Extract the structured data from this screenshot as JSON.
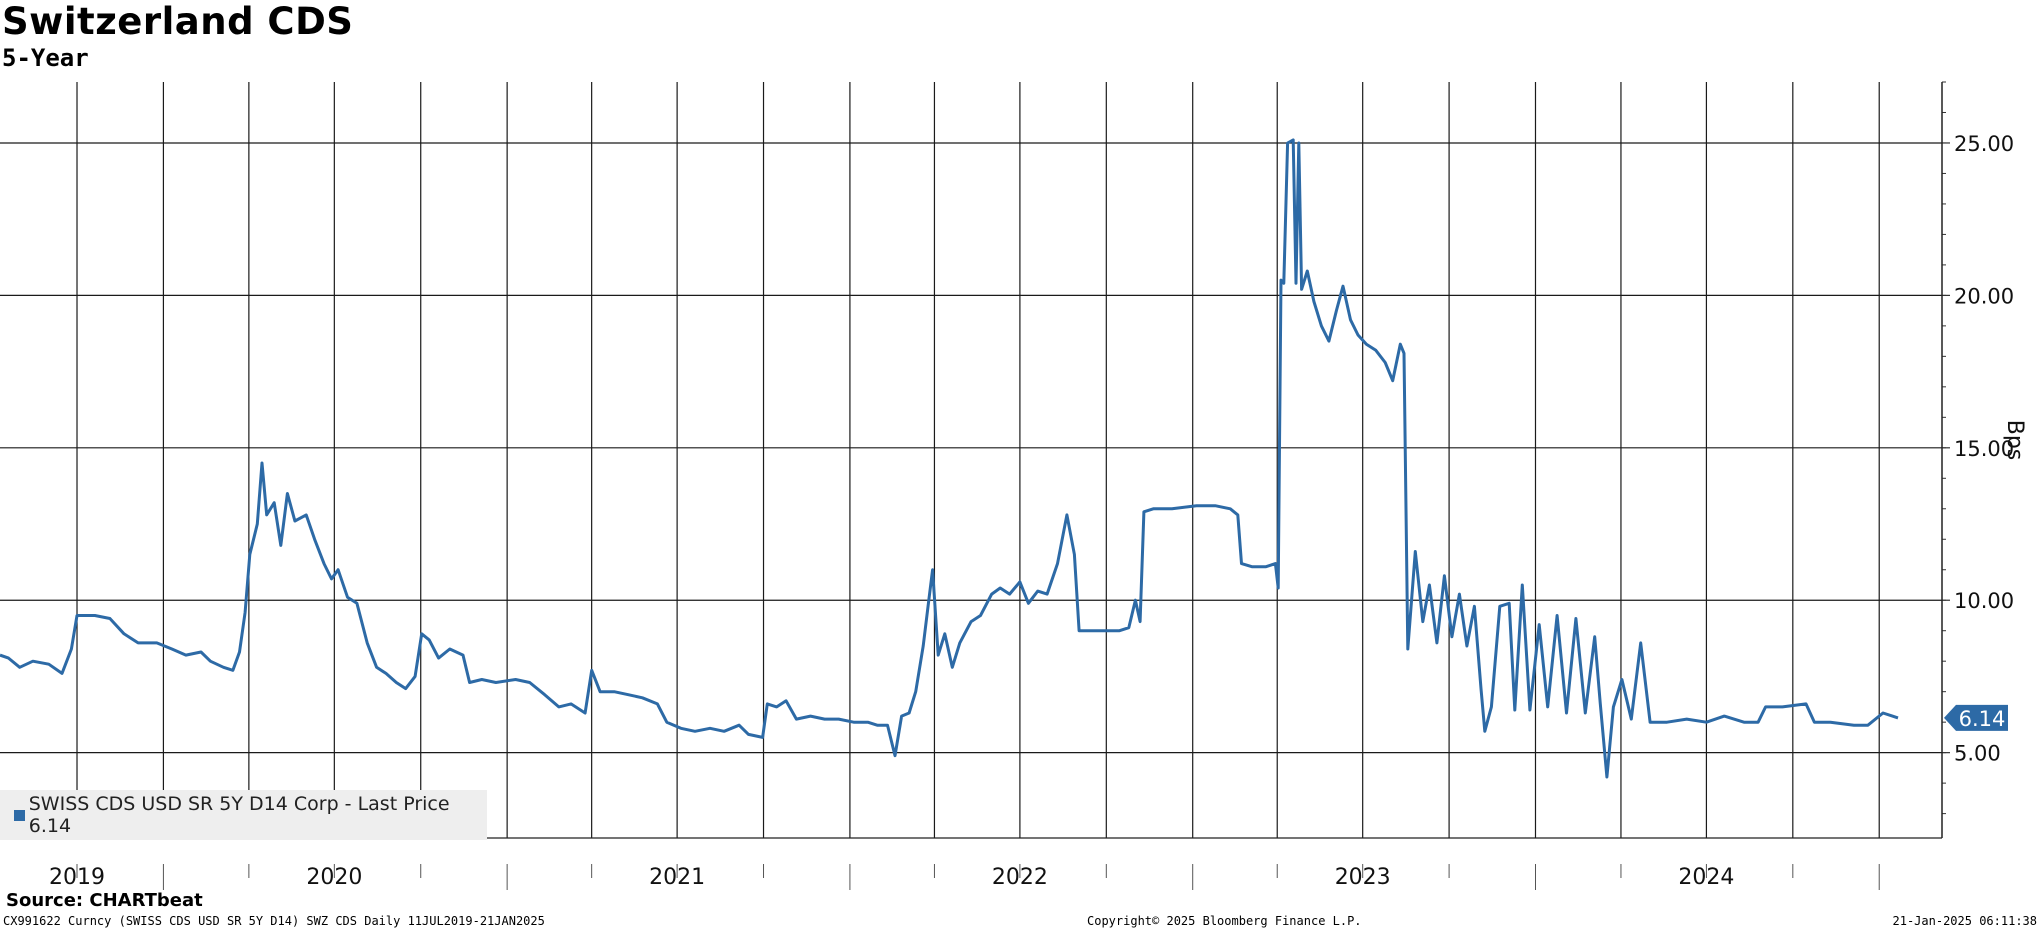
{
  "chart_data": {
    "type": "line",
    "title": "Switzerland CDS",
    "subtitle": "5-Year",
    "ylabel": "Bps",
    "ylim": [
      2.2,
      27.0
    ],
    "xlim": [
      "2019-07-11",
      "2025-01-21"
    ],
    "y_ticks": [
      "5.00",
      "10.00",
      "15.00",
      "20.00",
      "25.00"
    ],
    "x_year_labels": [
      {
        "label": "2019",
        "date": "2019-10-01"
      },
      {
        "label": "2020",
        "date": "2020-07-01"
      },
      {
        "label": "2021",
        "date": "2021-07-01"
      },
      {
        "label": "2022",
        "date": "2022-07-01"
      },
      {
        "label": "2023",
        "date": "2023-07-01"
      },
      {
        "label": "2024",
        "date": "2024-07-01"
      }
    ],
    "grid": true,
    "legend_position": "bottom-left",
    "series": [
      {
        "name": "SWISS CDS USD SR 5Y D14 Corp - Last Price 6.14",
        "color": "#2d6aa6",
        "last_value": "6.14",
        "points": [
          [
            "2019-07-11",
            8.2
          ],
          [
            "2019-07-20",
            8.1
          ],
          [
            "2019-08-01",
            7.8
          ],
          [
            "2019-08-15",
            8.0
          ],
          [
            "2019-09-01",
            7.9
          ],
          [
            "2019-09-15",
            7.6
          ],
          [
            "2019-09-25",
            8.4
          ],
          [
            "2019-10-01",
            9.5
          ],
          [
            "2019-10-20",
            9.5
          ],
          [
            "2019-11-05",
            9.4
          ],
          [
            "2019-11-20",
            8.9
          ],
          [
            "2019-12-05",
            8.6
          ],
          [
            "2019-12-25",
            8.6
          ],
          [
            "2020-01-10",
            8.4
          ],
          [
            "2020-01-25",
            8.2
          ],
          [
            "2020-02-10",
            8.3
          ],
          [
            "2020-02-20",
            8.0
          ],
          [
            "2020-03-05",
            7.8
          ],
          [
            "2020-03-15",
            7.7
          ],
          [
            "2020-03-22",
            8.3
          ],
          [
            "2020-03-28",
            9.6
          ],
          [
            "2020-04-02",
            11.5
          ],
          [
            "2020-04-10",
            12.5
          ],
          [
            "2020-04-15",
            14.5
          ],
          [
            "2020-04-20",
            12.8
          ],
          [
            "2020-04-28",
            13.2
          ],
          [
            "2020-05-05",
            11.8
          ],
          [
            "2020-05-12",
            13.5
          ],
          [
            "2020-05-20",
            12.6
          ],
          [
            "2020-06-01",
            12.8
          ],
          [
            "2020-06-10",
            12.0
          ],
          [
            "2020-06-20",
            11.2
          ],
          [
            "2020-06-28",
            10.7
          ],
          [
            "2020-07-05",
            11.0
          ],
          [
            "2020-07-15",
            10.1
          ],
          [
            "2020-07-25",
            9.9
          ],
          [
            "2020-08-05",
            8.6
          ],
          [
            "2020-08-15",
            7.8
          ],
          [
            "2020-08-25",
            7.6
          ],
          [
            "2020-09-05",
            7.3
          ],
          [
            "2020-09-15",
            7.1
          ],
          [
            "2020-09-25",
            7.5
          ],
          [
            "2020-10-02",
            8.9
          ],
          [
            "2020-10-10",
            8.7
          ],
          [
            "2020-10-20",
            8.1
          ],
          [
            "2020-11-01",
            8.4
          ],
          [
            "2020-11-15",
            8.2
          ],
          [
            "2020-11-22",
            7.3
          ],
          [
            "2020-12-05",
            7.4
          ],
          [
            "2020-12-20",
            7.3
          ],
          [
            "2021-01-10",
            7.4
          ],
          [
            "2021-01-25",
            7.3
          ],
          [
            "2021-02-10",
            6.9
          ],
          [
            "2021-02-25",
            6.5
          ],
          [
            "2021-03-10",
            6.6
          ],
          [
            "2021-03-25",
            6.3
          ],
          [
            "2021-04-01",
            7.7
          ],
          [
            "2021-04-10",
            7.0
          ],
          [
            "2021-04-25",
            7.0
          ],
          [
            "2021-05-10",
            6.9
          ],
          [
            "2021-05-25",
            6.8
          ],
          [
            "2021-06-10",
            6.6
          ],
          [
            "2021-06-20",
            6.0
          ],
          [
            "2021-07-05",
            5.8
          ],
          [
            "2021-07-20",
            5.7
          ],
          [
            "2021-08-05",
            5.8
          ],
          [
            "2021-08-20",
            5.7
          ],
          [
            "2021-09-05",
            5.9
          ],
          [
            "2021-09-15",
            5.6
          ],
          [
            "2021-09-30",
            5.5
          ],
          [
            "2021-10-05",
            6.6
          ],
          [
            "2021-10-15",
            6.5
          ],
          [
            "2021-10-25",
            6.7
          ],
          [
            "2021-11-05",
            6.1
          ],
          [
            "2021-11-20",
            6.2
          ],
          [
            "2021-12-05",
            6.1
          ],
          [
            "2021-12-20",
            6.1
          ],
          [
            "2022-01-05",
            6.0
          ],
          [
            "2022-01-20",
            6.0
          ],
          [
            "2022-01-30",
            5.9
          ],
          [
            "2022-02-10",
            5.9
          ],
          [
            "2022-02-18",
            4.9
          ],
          [
            "2022-02-25",
            6.2
          ],
          [
            "2022-03-05",
            6.3
          ],
          [
            "2022-03-12",
            7.0
          ],
          [
            "2022-03-20",
            8.5
          ],
          [
            "2022-03-26",
            10.0
          ],
          [
            "2022-03-30",
            11.0
          ],
          [
            "2022-04-05",
            8.2
          ],
          [
            "2022-04-12",
            8.9
          ],
          [
            "2022-04-20",
            7.8
          ],
          [
            "2022-04-28",
            8.6
          ],
          [
            "2022-05-10",
            9.3
          ],
          [
            "2022-05-20",
            9.5
          ],
          [
            "2022-06-01",
            10.2
          ],
          [
            "2022-06-10",
            10.4
          ],
          [
            "2022-06-20",
            10.2
          ],
          [
            "2022-07-01",
            10.6
          ],
          [
            "2022-07-10",
            9.9
          ],
          [
            "2022-07-20",
            10.3
          ],
          [
            "2022-07-30",
            10.2
          ],
          [
            "2022-08-10",
            11.2
          ],
          [
            "2022-08-20",
            12.8
          ],
          [
            "2022-08-28",
            11.5
          ],
          [
            "2022-09-02",
            9.0
          ],
          [
            "2022-09-15",
            9.0
          ],
          [
            "2022-10-01",
            9.0
          ],
          [
            "2022-10-15",
            9.0
          ],
          [
            "2022-10-25",
            9.1
          ],
          [
            "2022-11-01",
            10.0
          ],
          [
            "2022-11-06",
            9.3
          ],
          [
            "2022-11-10",
            12.9
          ],
          [
            "2022-11-20",
            13.0
          ],
          [
            "2022-12-10",
            13.0
          ],
          [
            "2023-01-05",
            13.1
          ],
          [
            "2023-01-25",
            13.1
          ],
          [
            "2023-02-10",
            13.0
          ],
          [
            "2023-02-18",
            12.8
          ],
          [
            "2023-02-22",
            11.2
          ],
          [
            "2023-03-05",
            11.1
          ],
          [
            "2023-03-20",
            11.1
          ],
          [
            "2023-03-30",
            11.2
          ],
          [
            "2023-04-02",
            10.4
          ],
          [
            "2023-04-05",
            20.5
          ],
          [
            "2023-04-08",
            20.4
          ],
          [
            "2023-04-12",
            25.0
          ],
          [
            "2023-04-18",
            25.1
          ],
          [
            "2023-04-21",
            20.4
          ],
          [
            "2023-04-24",
            25.0
          ],
          [
            "2023-04-27",
            20.2
          ],
          [
            "2023-05-03",
            20.8
          ],
          [
            "2023-05-10",
            19.8
          ],
          [
            "2023-05-18",
            19.0
          ],
          [
            "2023-05-26",
            18.5
          ],
          [
            "2023-06-03",
            19.5
          ],
          [
            "2023-06-10",
            20.3
          ],
          [
            "2023-06-18",
            19.2
          ],
          [
            "2023-06-26",
            18.7
          ],
          [
            "2023-07-05",
            18.4
          ],
          [
            "2023-07-15",
            18.2
          ],
          [
            "2023-07-25",
            17.8
          ],
          [
            "2023-08-02",
            17.2
          ],
          [
            "2023-08-10",
            18.4
          ],
          [
            "2023-08-14",
            18.1
          ],
          [
            "2023-08-18",
            8.4
          ],
          [
            "2023-08-26",
            11.6
          ],
          [
            "2023-09-03",
            9.3
          ],
          [
            "2023-09-10",
            10.5
          ],
          [
            "2023-09-18",
            8.6
          ],
          [
            "2023-09-26",
            10.8
          ],
          [
            "2023-10-04",
            8.8
          ],
          [
            "2023-10-12",
            10.2
          ],
          [
            "2023-10-20",
            8.5
          ],
          [
            "2023-10-28",
            9.8
          ],
          [
            "2023-11-04",
            7.1
          ],
          [
            "2023-11-08",
            5.7
          ],
          [
            "2023-11-15",
            6.5
          ],
          [
            "2023-11-24",
            9.8
          ],
          [
            "2023-12-04",
            9.9
          ],
          [
            "2023-12-10",
            6.4
          ],
          [
            "2023-12-18",
            10.5
          ],
          [
            "2023-12-26",
            6.4
          ],
          [
            "2024-01-05",
            9.2
          ],
          [
            "2024-01-14",
            6.5
          ],
          [
            "2024-01-24",
            9.5
          ],
          [
            "2024-02-03",
            6.3
          ],
          [
            "2024-02-13",
            9.4
          ],
          [
            "2024-02-23",
            6.3
          ],
          [
            "2024-03-04",
            8.8
          ],
          [
            "2024-03-10",
            6.6
          ],
          [
            "2024-03-17",
            4.2
          ],
          [
            "2024-03-24",
            6.5
          ],
          [
            "2024-04-02",
            7.4
          ],
          [
            "2024-04-12",
            6.1
          ],
          [
            "2024-04-22",
            8.6
          ],
          [
            "2024-05-02",
            6.0
          ],
          [
            "2024-05-20",
            6.0
          ],
          [
            "2024-06-10",
            6.1
          ],
          [
            "2024-07-01",
            6.0
          ],
          [
            "2024-07-20",
            6.2
          ],
          [
            "2024-08-10",
            6.0
          ],
          [
            "2024-08-25",
            6.0
          ],
          [
            "2024-09-02",
            6.5
          ],
          [
            "2024-09-20",
            6.5
          ],
          [
            "2024-10-15",
            6.6
          ],
          [
            "2024-10-24",
            6.0
          ],
          [
            "2024-11-10",
            6.0
          ],
          [
            "2024-12-05",
            5.9
          ],
          [
            "2024-12-20",
            5.9
          ],
          [
            "2025-01-05",
            6.3
          ],
          [
            "2025-01-15",
            6.2
          ],
          [
            "2025-01-21",
            6.14
          ]
        ]
      }
    ]
  },
  "header": {
    "title": "Switzerland CDS",
    "subtitle": "5-Year"
  },
  "footer": {
    "source": "Source: CHARTbeat",
    "left": "CX991622 Curncy (SWISS CDS USD SR 5Y D14) SWZ CDS  Daily 11JUL2019-21JAN2025",
    "center": "Copyright© 2025 Bloomberg Finance L.P.",
    "right": "21-Jan-2025 06:11:38"
  },
  "legend": {
    "label": "SWISS CDS USD SR 5Y D14 Corp - Last Price 6.14"
  }
}
